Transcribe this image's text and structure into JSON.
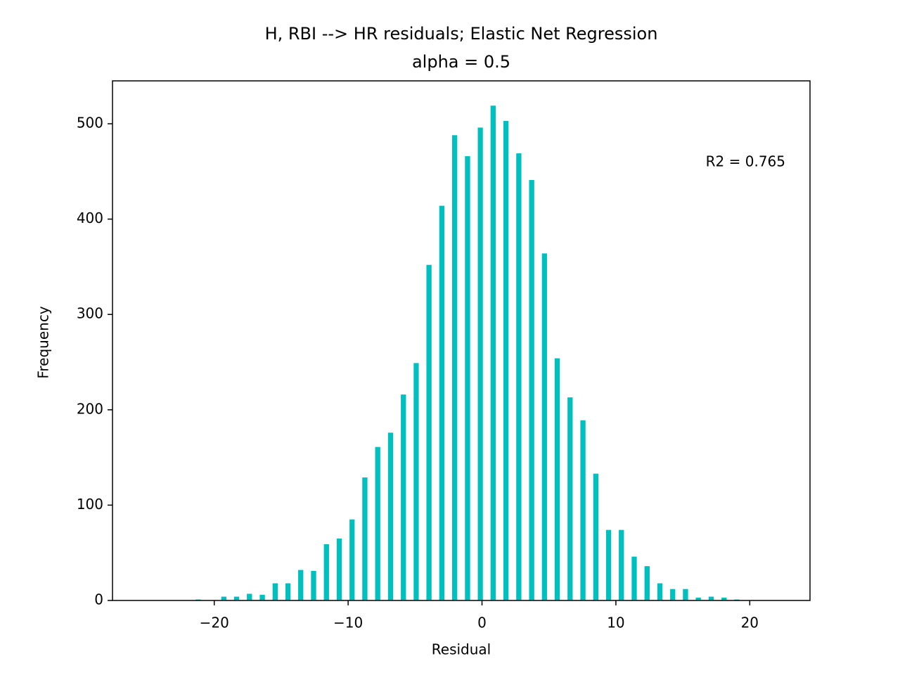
{
  "chart_data": {
    "type": "histogram",
    "title": "H, RBI --> HR residuals; Elastic Net Regression",
    "subtitle": "alpha = 0.5",
    "x_label": "Residual",
    "y_label": "Frequency",
    "annotation": "R2 = 0.765",
    "color": "#00bfbf",
    "bins": [
      -21.68,
      -20.72,
      -19.76,
      -18.81,
      -17.85,
      -16.89,
      -15.93,
      -14.97,
      -14.02,
      -13.06,
      -12.1,
      -11.14,
      -10.18,
      -9.23,
      -8.27,
      -7.31,
      -6.35,
      -5.39,
      -4.44,
      -3.48,
      -2.52,
      -1.56,
      -0.6,
      0.35,
      1.31,
      2.27,
      3.23,
      4.19,
      5.14,
      6.1,
      7.06,
      8.02,
      8.98,
      9.93,
      10.89,
      11.85,
      12.81,
      13.77,
      14.72,
      15.68,
      16.64,
      17.6,
      18.56,
      19.51
    ],
    "values": [
      1,
      0,
      4,
      4,
      7,
      6,
      18,
      18,
      32,
      31,
      59,
      65,
      85,
      129,
      161,
      176,
      216,
      249,
      352,
      414,
      488,
      466,
      496,
      519,
      503,
      469,
      441,
      364,
      254,
      213,
      189,
      133,
      74,
      74,
      46,
      36,
      18,
      12,
      12,
      3,
      4,
      3,
      1
    ],
    "xlim": [
      -27.6,
      24.5
    ],
    "xticks": [
      {
        "value": -20,
        "label": "−20"
      },
      {
        "value": -10,
        "label": "−10"
      },
      0,
      10,
      20
    ],
    "ylim": [
      0,
      545
    ],
    "yticks": [
      0,
      100,
      200,
      300,
      400,
      500
    ]
  }
}
